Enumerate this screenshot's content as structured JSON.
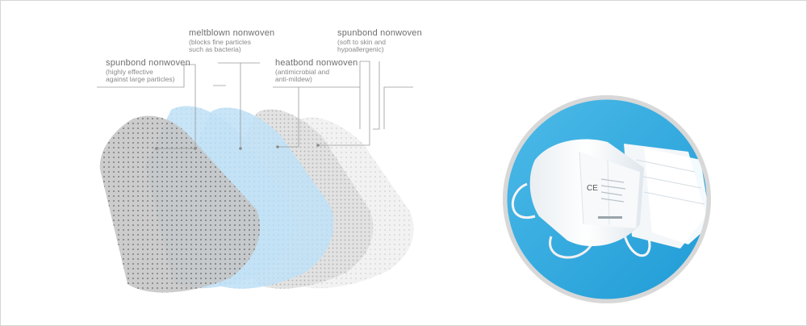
{
  "labels": [
    {
      "title": "spunbond nonwoven",
      "desc_lines": [
        "(highly effective",
        "against large particles)"
      ]
    },
    {
      "title": "meltblown nonwoven",
      "desc_lines": [
        "(blocks fine particles",
        "such as bacteria)"
      ]
    },
    {
      "title": "heatbond nonwoven",
      "desc_lines": [
        "(antimicrobial and",
        "anti-mildew)"
      ]
    },
    {
      "title": "spunbond nonwoven",
      "desc_lines": [
        "(soft to skin and",
        "hypoallergenic)"
      ]
    }
  ],
  "photo": {
    "subject": "white KN95 face masks on blue background",
    "mark": "CE"
  },
  "colors": {
    "gray_layer": "#c8c8c8",
    "blue_layer": "#bfe0f5",
    "light_gray_layer": "#e6e6e6",
    "photo_bg": "#2aa6dd"
  }
}
